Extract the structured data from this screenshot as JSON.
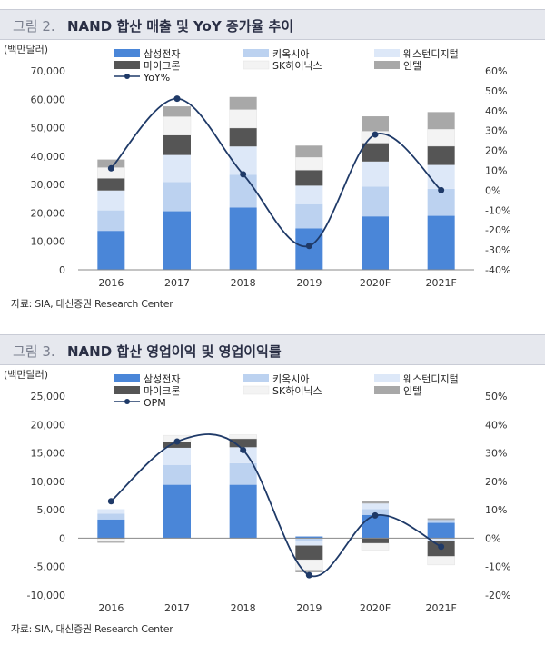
{
  "chart_data": [
    {
      "type": "bar",
      "figure_number": "그림 2.",
      "title": "NAND 합산 매출 및 YoY 증가율 추이",
      "unit_label": "(백만달러)",
      "categories": [
        "2016",
        "2017",
        "2018",
        "2019",
        "2020F",
        "2021F"
      ],
      "ylim": [
        0,
        70000
      ],
      "yticks": [
        "0",
        "10,000",
        "20,000",
        "30,000",
        "40,000",
        "50,000",
        "60,000",
        "70,000"
      ],
      "y2lim": [
        -40,
        60
      ],
      "y2ticks": [
        "-40%",
        "-30%",
        "-20%",
        "-10%",
        "0%",
        "10%",
        "20%",
        "30%",
        "40%",
        "50%",
        "60%"
      ],
      "series": [
        {
          "name": "삼성전자",
          "color": "#4a86d8",
          "values": [
            13700,
            20600,
            21900,
            14600,
            18800,
            19000
          ]
        },
        {
          "name": "키옥시아",
          "color": "#bcd2f0",
          "values": [
            7200,
            10300,
            11500,
            8500,
            10500,
            9500
          ]
        },
        {
          "name": "웨스턴디지털",
          "color": "#dde8f8",
          "values": [
            7000,
            9500,
            10000,
            6500,
            8800,
            8400
          ]
        },
        {
          "name": "마이크론",
          "color": "#555555",
          "values": [
            4300,
            7000,
            6500,
            5500,
            6500,
            6600
          ]
        },
        {
          "name": "SK하이닉스",
          "color": "#f3f3f3",
          "values": [
            3800,
            6500,
            6500,
            4500,
            4200,
            6000
          ]
        },
        {
          "name": "인텔",
          "color": "#a8a8a8",
          "values": [
            2800,
            3600,
            4400,
            4100,
            5200,
            6000
          ]
        }
      ],
      "line": {
        "name": "YoY%",
        "color": "#1f3a68",
        "values": [
          11,
          46,
          8,
          -28,
          28,
          0
        ]
      },
      "source": "자료: SIA, 대신증권 Research Center"
    },
    {
      "type": "bar",
      "figure_number": "그림 3.",
      "title": "NAND 합산 영업이익 및 영업이익률",
      "unit_label": "(백만달러)",
      "categories": [
        "2016",
        "2017",
        "2018",
        "2019",
        "2020F",
        "2021F"
      ],
      "ylim": [
        -10000,
        25000
      ],
      "yticks": [
        "-10,000",
        "-5,000",
        "0",
        "5,000",
        "10,000",
        "15,000",
        "20,000",
        "25,000"
      ],
      "y2lim": [
        -20,
        50
      ],
      "y2ticks": [
        "-20%",
        "-10%",
        "0%",
        "10%",
        "20%",
        "30%",
        "40%",
        "50%"
      ],
      "series": [
        {
          "name": "삼성전자",
          "color": "#4a86d8",
          "values": [
            3300,
            9400,
            9400,
            300,
            4100,
            2700
          ]
        },
        {
          "name": "키옥시아",
          "color": "#bcd2f0",
          "values": [
            1000,
            3500,
            3800,
            -500,
            1000,
            500
          ]
        },
        {
          "name": "웨스턴디지털",
          "color": "#dde8f8",
          "values": [
            800,
            3000,
            2800,
            -800,
            1000,
            -500
          ]
        },
        {
          "name": "마이크론",
          "color": "#555555",
          "values": [
            -100,
            1000,
            1500,
            -2500,
            -900,
            -2700
          ]
        },
        {
          "name": "SK하이닉스",
          "color": "#f3f3f3",
          "values": [
            -500,
            1200,
            700,
            -1800,
            -1200,
            -1500
          ]
        },
        {
          "name": "인텔",
          "color": "#a8a8a8",
          "values": [
            -200,
            0,
            0,
            -400,
            500,
            300
          ]
        }
      ],
      "line": {
        "name": "OPM",
        "color": "#1f3a68",
        "values": [
          13,
          34,
          31,
          -13,
          8,
          -3
        ]
      },
      "source": "자료: SIA, 대신증권 Research Center"
    }
  ]
}
